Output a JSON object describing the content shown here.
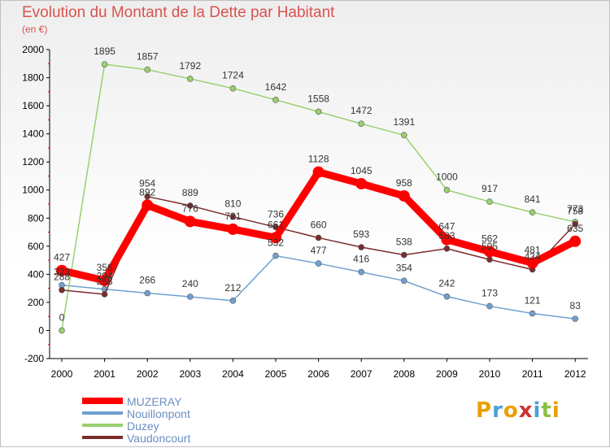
{
  "page": {
    "title": "Evolution du Montant de la Dette par Habitant",
    "unit_label": "(en €)",
    "logo_text": "Proxiti"
  },
  "chart_data": {
    "type": "line",
    "title": "Evolution du Montant de la Dette par Habitant",
    "subtitle": "(en €)",
    "xlabel": "",
    "ylabel": "",
    "categories": [
      "2000",
      "2001",
      "2002",
      "2003",
      "2004",
      "2005",
      "2006",
      "2007",
      "2008",
      "2009",
      "2010",
      "2011",
      "2012"
    ],
    "ylim": [
      -200,
      2000
    ],
    "yticks": [
      -200,
      0,
      200,
      400,
      600,
      800,
      1000,
      1200,
      1400,
      1600,
      1800,
      2000
    ],
    "grid": false,
    "legend": "bottom-left",
    "series": [
      {
        "name": "MUZERAY",
        "color": "#ff0000",
        "emphasis": true,
        "values": [
          427,
          356,
          892,
          776,
          721,
          661,
          1128,
          1045,
          958,
          647,
          562,
          481,
          635
        ],
        "labels": [
          "427",
          "356",
          "892",
          "776",
          "721",
          "661",
          "1128",
          "1045",
          "958",
          "647",
          "562",
          "481",
          "635"
        ]
      },
      {
        "name": "Nouillonpont",
        "color": "#6fa0d0",
        "emphasis": false,
        "values": [
          323,
          294,
          266,
          240,
          212,
          532,
          477,
          416,
          354,
          242,
          173,
          121,
          83
        ],
        "labels": [
          "323",
          "294",
          "266",
          "240",
          "212",
          "532",
          "477",
          "416",
          "354",
          "242",
          "173",
          "121",
          "83"
        ]
      },
      {
        "name": "Duzey",
        "color": "#99d070",
        "emphasis": false,
        "values": [
          0,
          1895,
          1857,
          1792,
          1724,
          1642,
          1558,
          1472,
          1391,
          1000,
          917,
          841,
          773
        ],
        "labels": [
          "0",
          "1895",
          "1857",
          "1792",
          "1724",
          "1642",
          "1558",
          "1472",
          "1391",
          "1000",
          "917",
          "841",
          "773"
        ]
      },
      {
        "name": "Vaudoncourt",
        "color": "#7b2c2c",
        "emphasis": false,
        "values": [
          288,
          258,
          954,
          889,
          810,
          736,
          660,
          593,
          538,
          583,
          505,
          434,
          758
        ],
        "labels": [
          "288",
          "258",
          "954",
          "889",
          "810",
          "736",
          "660",
          "593",
          "538",
          "583",
          "505",
          "434",
          "758"
        ]
      }
    ]
  }
}
